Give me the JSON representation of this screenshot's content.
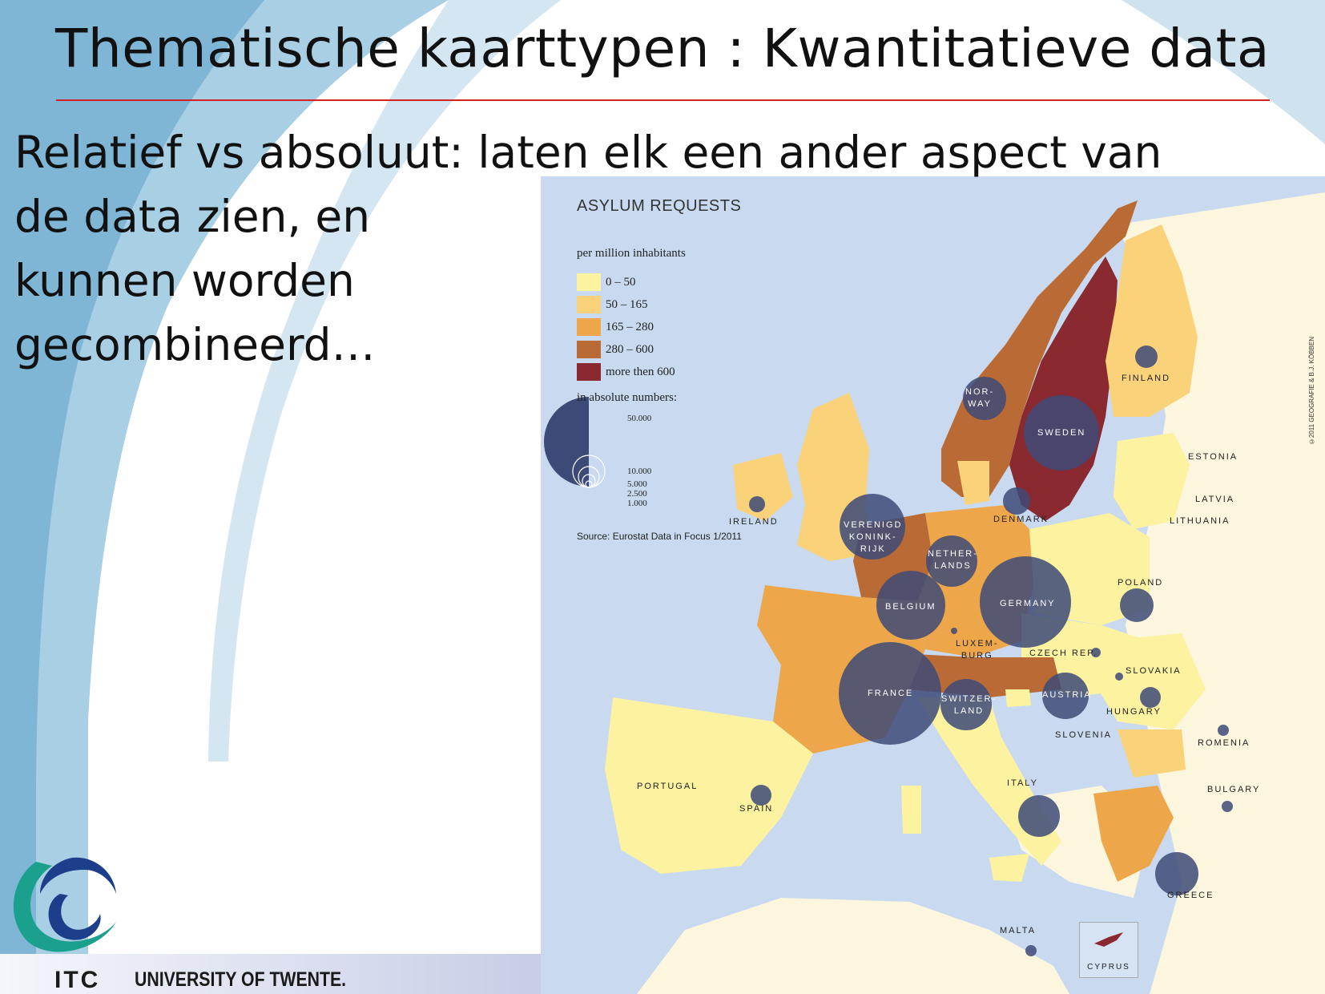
{
  "slide": {
    "title": "Thematische kaarttypen : Kwantitatieve data",
    "body_lines": [
      "Relatief vs absoluut: laten elk een ander aspect van",
      "de data zien, en",
      "kunnen worden",
      "gecombineerd…"
    ]
  },
  "map": {
    "title": "ASYLUM REQUESTS",
    "legend_relative_title": "per million inhabitants",
    "classes": [
      {
        "label": "0 – 50",
        "color": "#fdf2a0"
      },
      {
        "label": "50 – 165",
        "color": "#f9d27a"
      },
      {
        "label": "165 – 280",
        "color": "#eea64a"
      },
      {
        "label": "280 – 600",
        "color": "#ba6a34"
      },
      {
        "label": "more then 600",
        "color": "#8a2a30"
      }
    ],
    "legend_absolute_title": "in absolute numbers:",
    "absolute_values": [
      "50.000",
      "10.000",
      "5.000",
      "2.500",
      "1.000"
    ],
    "source": "Source: Eurostat Data in Focus 1/2011",
    "copyright": "©2011 GEOGRAFIE & B.J. KÖBBEN",
    "symbol_color": "#3d4a78",
    "countries": [
      {
        "name": "FINLAND"
      },
      {
        "name": "NOR-\nWAY"
      },
      {
        "name": "SWEDEN"
      },
      {
        "name": "ESTONIA"
      },
      {
        "name": "LATVIA"
      },
      {
        "name": "LITHUANIA"
      },
      {
        "name": "DENMARK"
      },
      {
        "name": "IRELAND"
      },
      {
        "name": "VERENIGD\nKONINK-\nRIJK"
      },
      {
        "name": "NETHER-\nLANDS"
      },
      {
        "name": "BELGIUM"
      },
      {
        "name": "GERMANY"
      },
      {
        "name": "POLAND"
      },
      {
        "name": "LUXEM-\nBURG"
      },
      {
        "name": "CZECH REP."
      },
      {
        "name": "SLOVAKIA"
      },
      {
        "name": "FRANCE"
      },
      {
        "name": "SWITZER-\nLAND"
      },
      {
        "name": "AUSTRIA"
      },
      {
        "name": "HUNGARY"
      },
      {
        "name": "SLOVENIA"
      },
      {
        "name": "ROMENIA"
      },
      {
        "name": "PORTUGAL"
      },
      {
        "name": "SPAIN"
      },
      {
        "name": "ITALY"
      },
      {
        "name": "BULGARY"
      },
      {
        "name": "GREECE"
      },
      {
        "name": "MALTA"
      },
      {
        "name": "CYPRUS"
      }
    ]
  },
  "footer": {
    "itc": "ITC",
    "university": "UNIVERSITY OF TWENTE."
  }
}
